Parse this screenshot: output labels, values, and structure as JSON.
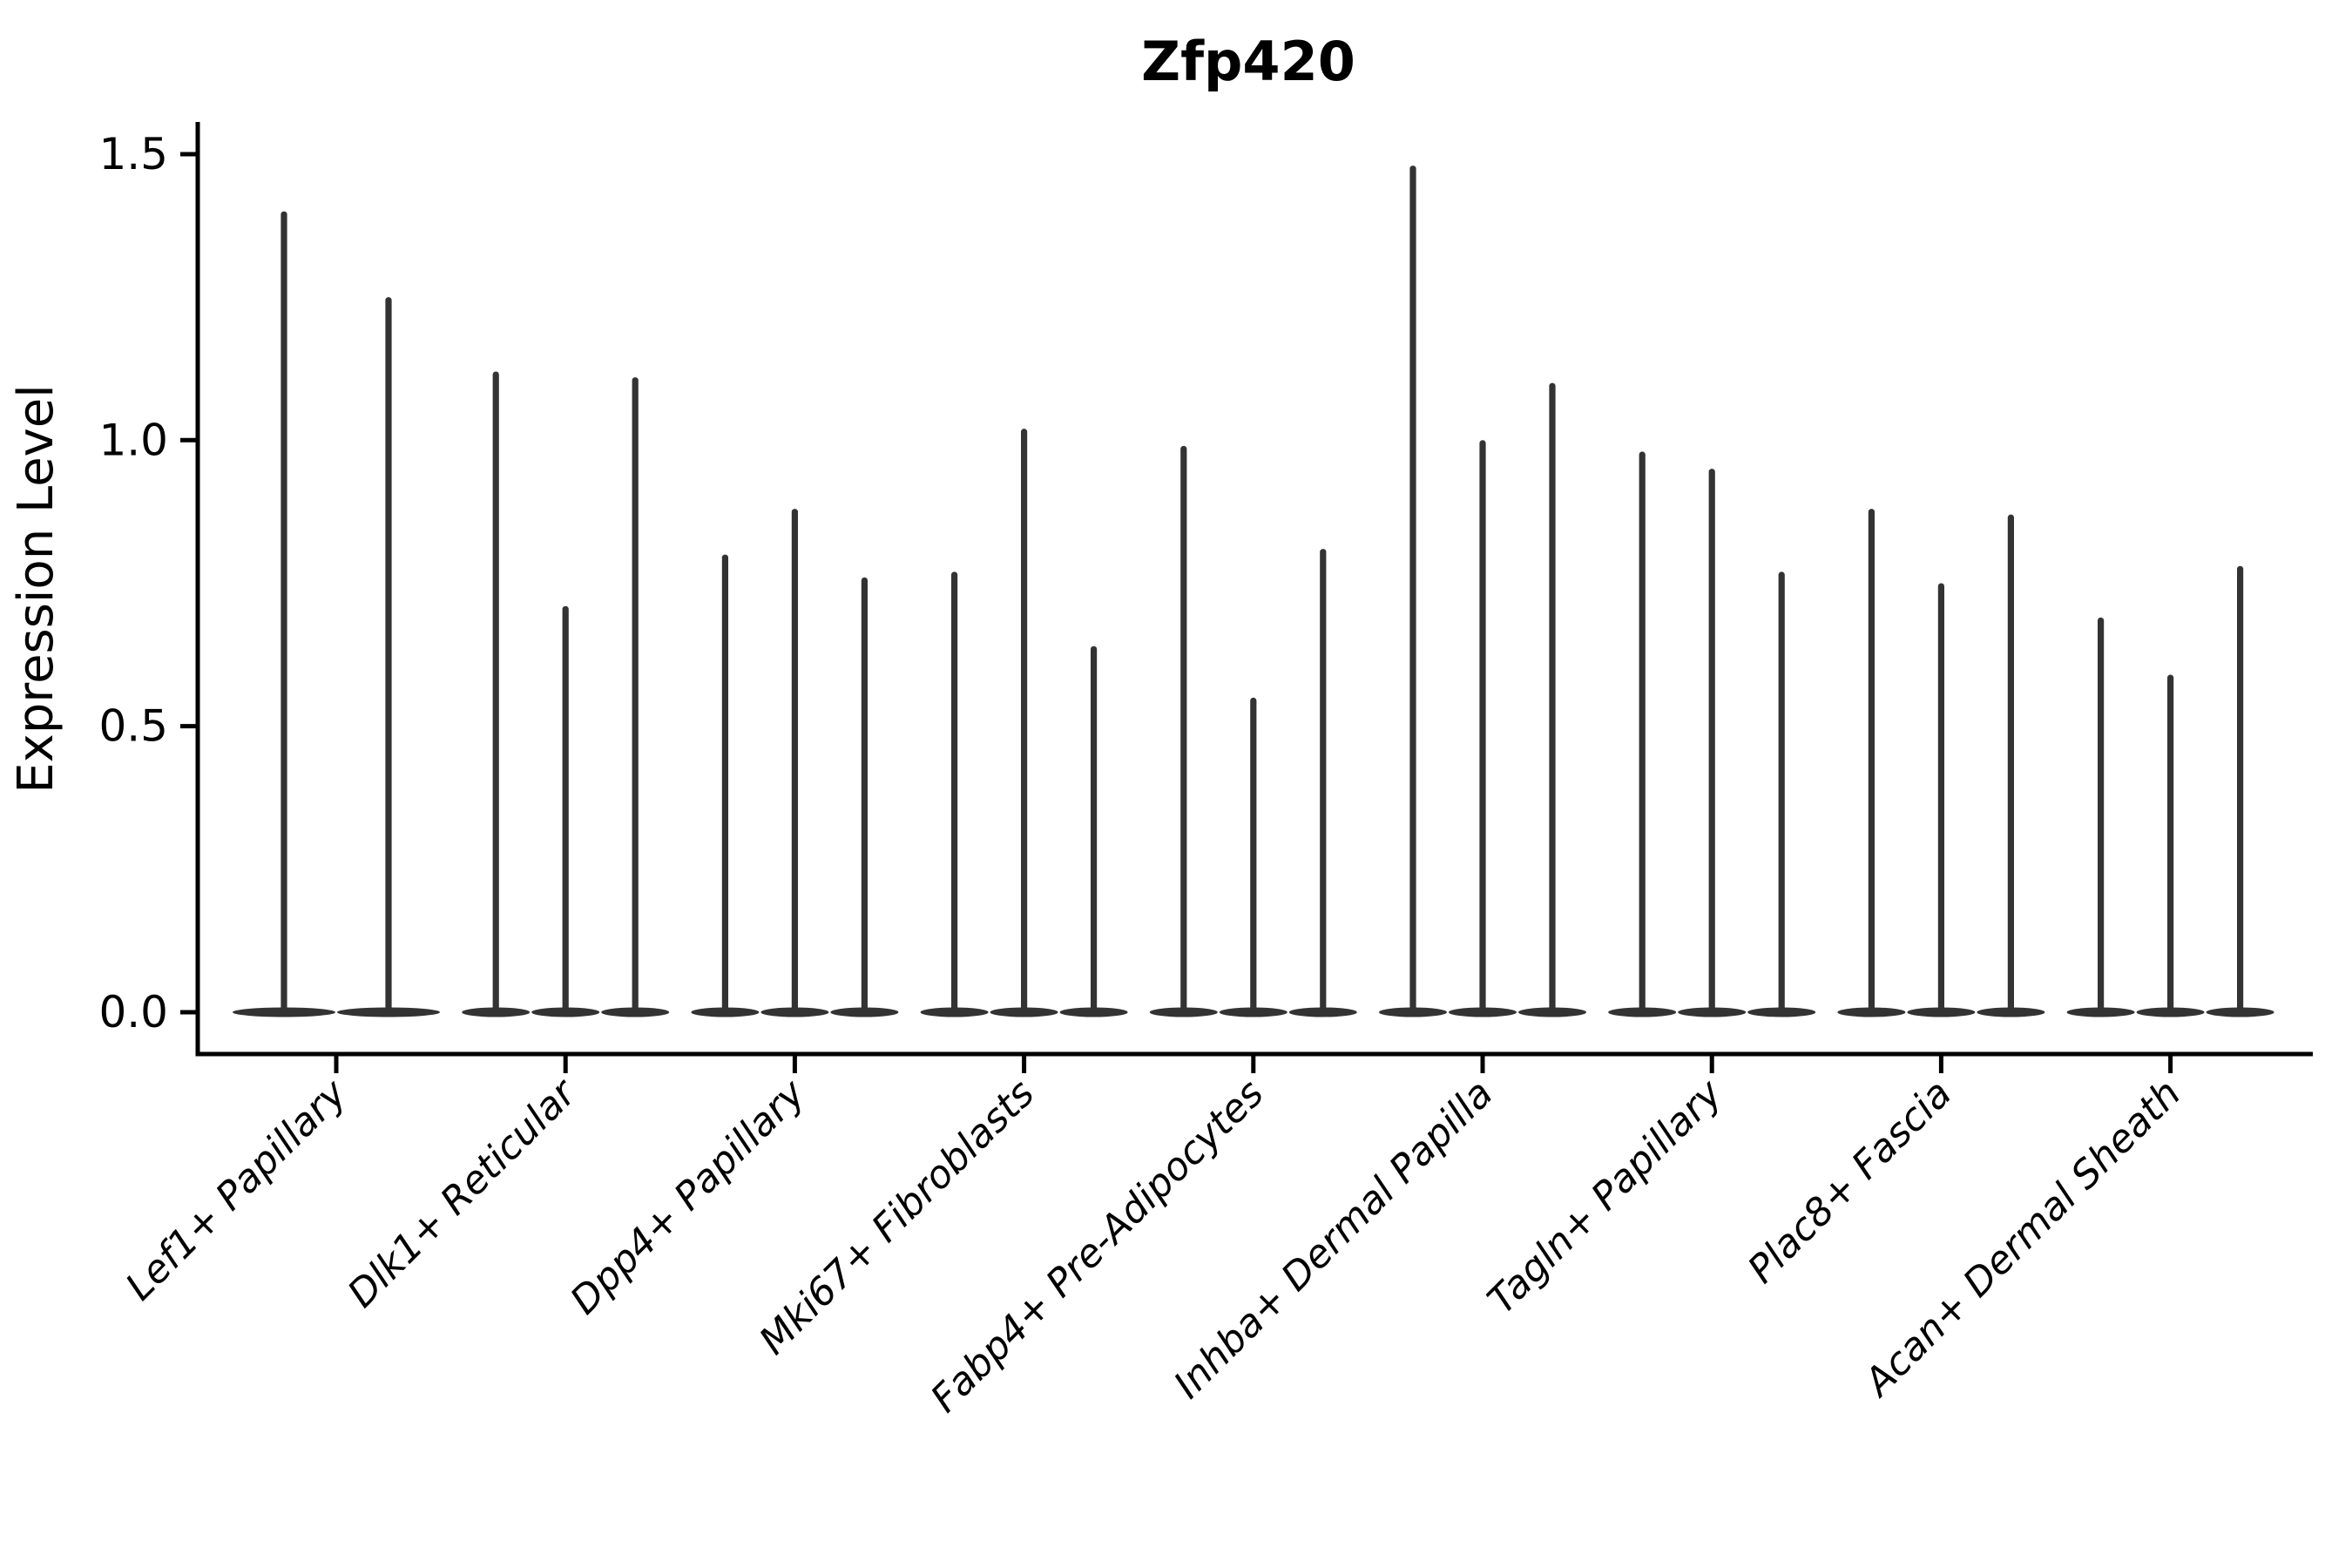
{
  "chart_data": {
    "type": "violin",
    "title": "Zfp420",
    "xlabel": "",
    "ylabel": "Expression Level",
    "ylim": [
      0.0,
      1.5
    ],
    "yticks": [
      0.0,
      0.5,
      1.0,
      1.5
    ],
    "grid": false,
    "legend": "none",
    "categories": [
      "Lef1+ Papillary",
      "Dlk1+ Reticular",
      "Dpp4+ Papillary",
      "Mki67+ Fibroblasts",
      "Fabp4+ Pre-Adipocytes",
      "Inhba+ Dermal Papilla",
      "Tagln+ Papillary",
      "Plac8+ Fascia",
      "Acan+ Dermal Sheath"
    ],
    "series_note": "each category shows narrow violins (mostly-zero expression: flat base at 0 with a thin spike to the max value); spike max expression values per violin:",
    "violin_max_values": [
      [
        1.4,
        1.25
      ],
      [
        1.12,
        0.71,
        1.11
      ],
      [
        0.8,
        0.88,
        0.76
      ],
      [
        0.77,
        1.02,
        0.64
      ],
      [
        0.99,
        0.55,
        0.81
      ],
      [
        1.48,
        1.0,
        1.1
      ],
      [
        0.98,
        0.95,
        0.77
      ],
      [
        0.88,
        0.75,
        0.87
      ],
      [
        0.69,
        0.59,
        0.78
      ]
    ],
    "colors": {
      "background": "#ffffff",
      "ink": "#000000",
      "violin": "#333333"
    }
  }
}
